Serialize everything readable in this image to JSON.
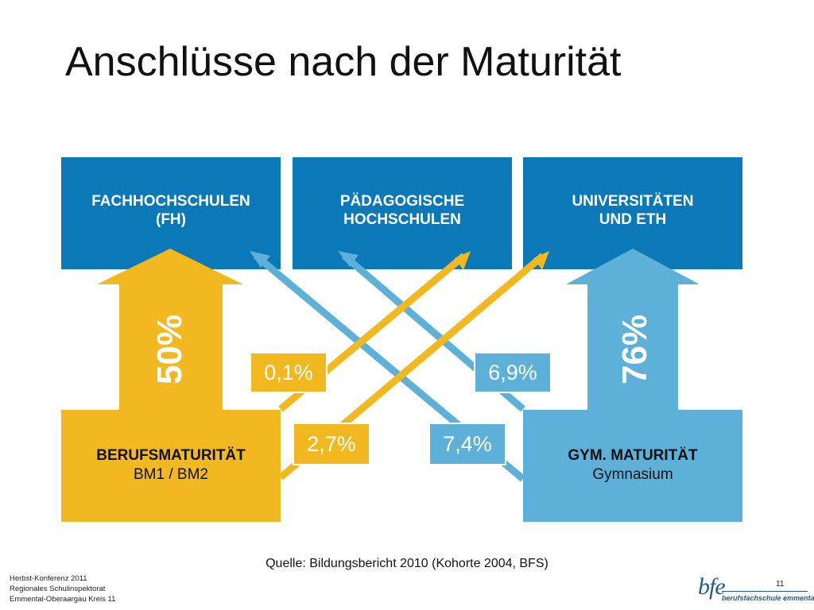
{
  "title": "Anschlüsse nach der Maturität",
  "destinations": [
    {
      "line1": "FACHHOCHSCHULEN",
      "line2": "(FH)"
    },
    {
      "line1": "PÄDAGOGISCHE",
      "line2": "HOCHSCHULEN"
    },
    {
      "line1": "UNIVERSITÄTEN",
      "line2": "UND ETH"
    }
  ],
  "origins": {
    "berufsmaturitaet": {
      "title": "BERUFSMATURITÄT",
      "subtitle": "BM1 / BM2",
      "color": "#f2b820"
    },
    "gym": {
      "title": "GYM. MATURITÄT",
      "subtitle": "Gymnasium",
      "color": "#5db1d8"
    }
  },
  "flows": {
    "bm_to_fh": "50%",
    "gym_to_uni": "76%",
    "bm_to_ph": "0,1%",
    "bm_to_uni": "2,7%",
    "gym_to_ph": "6,9%",
    "gym_to_fh": "7,4%"
  },
  "colors": {
    "destination": "#0b78b7",
    "yellow": "#f2b820",
    "blue": "#5db1d8"
  },
  "source": "Quelle: Bildungsbericht 2010 (Kohorte 2004, BFS)",
  "footer": {
    "line1": "Herbst-Konferenz 2011",
    "line2": "Regionales Schulinspektorat",
    "line3": "Emmental-Oberaargau Kreis 11"
  },
  "page_number": "11",
  "logo": {
    "mark": "bfe",
    "text": "berufsfachschule emmental"
  }
}
